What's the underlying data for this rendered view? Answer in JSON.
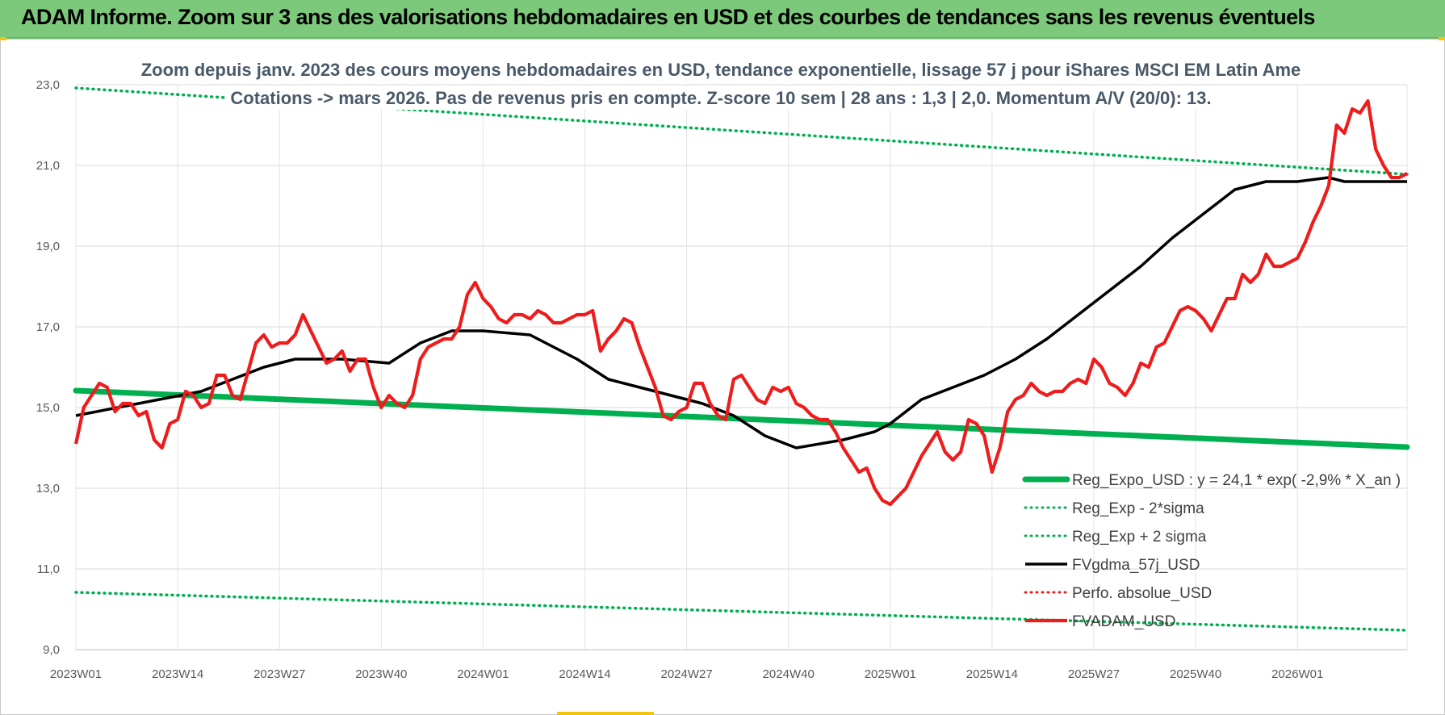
{
  "header": {
    "title": "ADAM Informe. Zoom sur 3 ans des valorisations hebdomadaires en USD et des courbes de tendances sans les revenus éventuels"
  },
  "colors": {
    "banner": "#7dc97b",
    "trend": "#00b050",
    "fvadam": "#ee1c1c",
    "fvgdma": "#000000",
    "accent": "#f2c40e"
  },
  "chart_data": {
    "type": "line",
    "title": "Zoom depuis janv. 2023 des cours moyens hebdomadaires en USD, tendance exponentielle, lissage 57 j pour iShares MSCI EM Latin Ame",
    "subtitle": "Cotations -> mars 2026. Pas de revenus pris en compte. Z-score 10 sem | 28 ans : 1,3 | 2,0. Momentum A/V (20/0): 13.",
    "xlabel": "",
    "ylabel": "",
    "ylim": [
      9,
      23
    ],
    "y_ticks": [
      "23,0",
      "21,0",
      "19,0",
      "17,0",
      "15,0",
      "13,0",
      "11,0",
      "9,0"
    ],
    "x_ticks": [
      "2023W01",
      "2023W14",
      "2023W27",
      "2023W40",
      "2024W01",
      "2024W14",
      "2024W27",
      "2024W40",
      "2025W01",
      "2025W14",
      "2025W27",
      "2025W40",
      "2026W01"
    ],
    "grid": true,
    "legend_placement": "bottom-right",
    "x_weeks_total": 170,
    "series": [
      {
        "name": "Reg_Expo_USD : y = 24,1 * exp( -2,9% *  X_an )",
        "style": "thick-solid",
        "color": "#00b050",
        "x": [
          0,
          170
        ],
        "values": [
          15.42,
          14.02
        ]
      },
      {
        "name": "Reg_Exp - 2*sigma",
        "style": "dotted",
        "color": "#00b050",
        "x": [
          0,
          170
        ],
        "values": [
          10.42,
          9.48
        ]
      },
      {
        "name": "Reg_Exp + 2 sigma",
        "style": "dotted",
        "color": "#00b050",
        "x": [
          0,
          170
        ],
        "values": [
          22.92,
          20.78
        ]
      },
      {
        "name": "FVgdma_57j_USD",
        "style": "solid",
        "color": "#000000",
        "x": [
          0,
          8,
          16,
          24,
          28,
          34,
          40,
          44,
          48,
          52,
          58,
          64,
          68,
          72,
          76,
          80,
          84,
          88,
          92,
          98,
          102,
          104,
          108,
          112,
          116,
          120,
          124,
          130,
          136,
          140,
          144,
          148,
          152,
          156,
          160,
          162,
          164,
          166,
          168,
          170
        ],
        "values": [
          14.8,
          15.1,
          15.4,
          16.0,
          16.2,
          16.2,
          16.1,
          16.6,
          16.9,
          16.9,
          16.8,
          16.2,
          15.7,
          15.5,
          15.3,
          15.1,
          14.8,
          14.3,
          14.0,
          14.2,
          14.4,
          14.6,
          15.2,
          15.5,
          15.8,
          16.2,
          16.7,
          17.6,
          18.5,
          19.2,
          19.8,
          20.4,
          20.6,
          20.6,
          20.7,
          20.6,
          20.6,
          20.6,
          20.6,
          20.6
        ]
      },
      {
        "name": "Perfo. absolue_USD",
        "style": "dotted",
        "color": "#ee1c1c",
        "x": [],
        "values": []
      },
      {
        "name": "FVADAM_USD",
        "style": "solid",
        "color": "#ee1c1c",
        "x": [
          0,
          1,
          2,
          3,
          4,
          5,
          6,
          7,
          8,
          9,
          10,
          11,
          12,
          13,
          14,
          15,
          16,
          17,
          18,
          19,
          20,
          21,
          22,
          23,
          24,
          25,
          26,
          27,
          28,
          29,
          30,
          31,
          32,
          33,
          34,
          35,
          36,
          37,
          38,
          39,
          40,
          41,
          42,
          43,
          44,
          45,
          46,
          47,
          48,
          49,
          50,
          51,
          52,
          53,
          54,
          55,
          56,
          57,
          58,
          59,
          60,
          61,
          62,
          63,
          64,
          65,
          66,
          67,
          68,
          69,
          70,
          71,
          72,
          73,
          74,
          75,
          76,
          77,
          78,
          79,
          80,
          81,
          82,
          83,
          84,
          85,
          86,
          87,
          88,
          89,
          90,
          91,
          92,
          93,
          94,
          95,
          96,
          97,
          98,
          99,
          100,
          101,
          102,
          103,
          104,
          105,
          106,
          107,
          108,
          109,
          110,
          111,
          112,
          113,
          114,
          115,
          116,
          117,
          118,
          119,
          120,
          121,
          122,
          123,
          124,
          125,
          126,
          127,
          128,
          129,
          130,
          131,
          132,
          133,
          134,
          135,
          136,
          137,
          138,
          139,
          140,
          141,
          142,
          143,
          144,
          145,
          146,
          147,
          148,
          149,
          150,
          151,
          152,
          153,
          154,
          155,
          156,
          157,
          158,
          159,
          160,
          161,
          162,
          163,
          164,
          165,
          166,
          167,
          168,
          169,
          170
        ],
        "values": [
          14.1,
          15.0,
          15.3,
          15.6,
          15.5,
          14.9,
          15.1,
          15.1,
          14.8,
          14.9,
          14.2,
          14.0,
          14.6,
          14.7,
          15.4,
          15.3,
          15.0,
          15.1,
          15.8,
          15.8,
          15.3,
          15.2,
          15.9,
          16.6,
          16.8,
          16.5,
          16.6,
          16.6,
          16.8,
          17.3,
          16.9,
          16.5,
          16.1,
          16.2,
          16.4,
          15.9,
          16.2,
          16.2,
          15.5,
          15.0,
          15.3,
          15.1,
          15.0,
          15.3,
          16.2,
          16.5,
          16.6,
          16.7,
          16.7,
          17.0,
          17.8,
          18.1,
          17.7,
          17.5,
          17.2,
          17.1,
          17.3,
          17.3,
          17.2,
          17.4,
          17.3,
          17.1,
          17.1,
          17.2,
          17.3,
          17.3,
          17.4,
          16.4,
          16.7,
          16.9,
          17.2,
          17.1,
          16.5,
          16.0,
          15.5,
          14.8,
          14.7,
          14.9,
          15.0,
          15.6,
          15.6,
          15.1,
          14.8,
          14.7,
          15.7,
          15.8,
          15.5,
          15.2,
          15.1,
          15.5,
          15.4,
          15.5,
          15.1,
          15.0,
          14.8,
          14.7,
          14.7,
          14.4,
          14.0,
          13.7,
          13.4,
          13.5,
          13.0,
          12.7,
          12.6,
          12.8,
          13.0,
          13.4,
          13.8,
          14.1,
          14.4,
          13.9,
          13.7,
          13.9,
          14.7,
          14.6,
          14.3,
          13.4,
          14.0,
          14.9,
          15.2,
          15.3,
          15.6,
          15.4,
          15.3,
          15.4,
          15.4,
          15.6,
          15.7,
          15.6,
          16.2,
          16.0,
          15.6,
          15.5,
          15.3,
          15.6,
          16.1,
          16.0,
          16.5,
          16.6,
          17.0,
          17.4,
          17.5,
          17.4,
          17.2,
          16.9,
          17.3,
          17.7,
          17.7,
          18.3,
          18.1,
          18.3,
          18.8,
          18.5,
          18.5,
          18.6,
          18.7,
          19.1,
          19.6,
          20.0,
          20.5,
          22.0,
          21.8,
          22.4,
          22.3,
          22.6,
          21.4,
          21.0,
          20.7,
          20.7,
          20.8
        ]
      }
    ]
  }
}
